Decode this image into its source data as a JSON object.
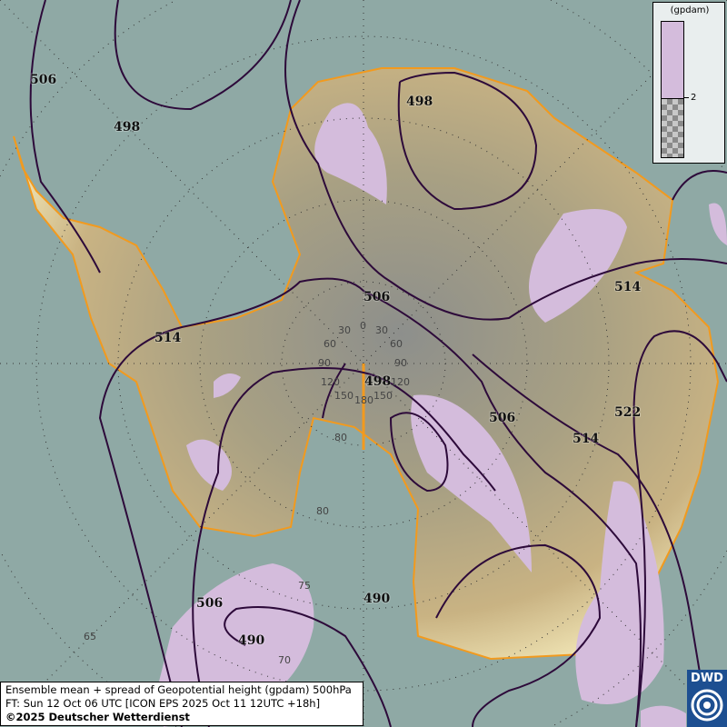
{
  "caption": {
    "line1": "Ensemble mean + spread of Geopotential height (gpdam) 500hPa",
    "line2": "FT: Sun 12 Oct 06 UTC [ICON EPS 2025 Oct 11 12UTC +18h]",
    "line3": "©2025 Deutscher Wetterdienst"
  },
  "legend": {
    "unit": "(gpdam)",
    "tick": "2",
    "colors": {
      "spread_above_2": "#d4bcdc",
      "spread_below_2": "checkerboard-grey"
    }
  },
  "logo": {
    "text": "DWD",
    "icon": "dwd-swirl-icon"
  },
  "colors": {
    "ocean": "#8fa9a5",
    "contour": "#2d0a3a",
    "coastline": "#f29a1e",
    "spread": "#d4bcdc"
  },
  "contour_labels": [
    "506",
    "498",
    "498",
    "506",
    "514",
    "498",
    "514",
    "506",
    "514",
    "522",
    "506",
    "490",
    "490"
  ],
  "graticule_labels": [
    "0",
    "30",
    "30",
    "60",
    "60",
    "90",
    "90",
    "120",
    "120",
    "150",
    "150",
    "180",
    "80",
    "80",
    "75",
    "70",
    "65"
  ]
}
